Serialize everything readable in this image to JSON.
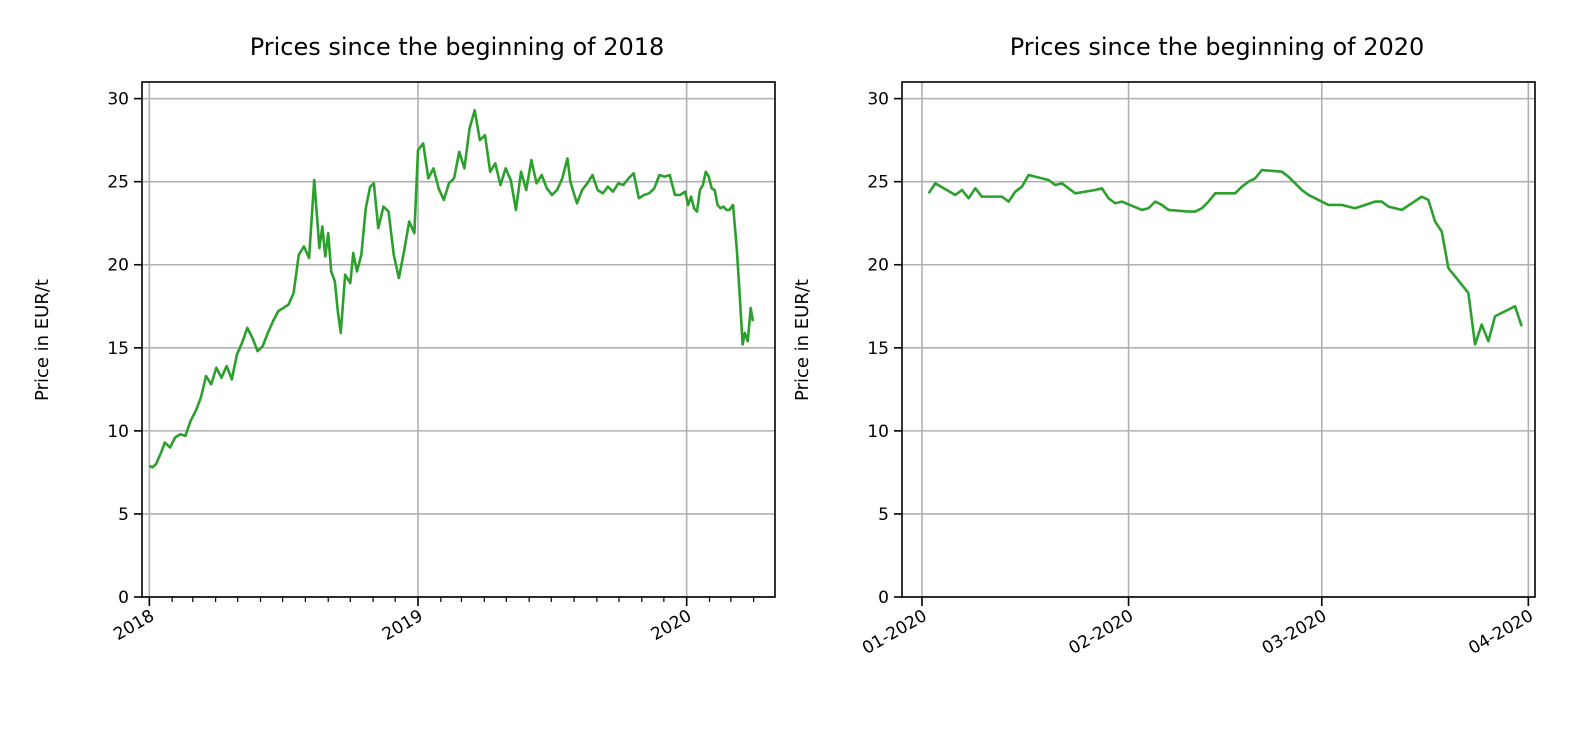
{
  "chart_data": [
    {
      "type": "line",
      "title": "Prices since the beginning of 2018",
      "xlabel": "",
      "ylabel": "Price in EUR/t",
      "x_axis": "date",
      "xlim": [
        "2017-12-22",
        "2020-04-30"
      ],
      "ylim": [
        0,
        31
      ],
      "yticks": [
        0,
        5,
        10,
        15,
        20,
        25,
        30
      ],
      "xticks": [
        {
          "date": "2018-01-01",
          "label": "2018"
        },
        {
          "date": "2019-01-01",
          "label": "2019"
        },
        {
          "date": "2020-01-01",
          "label": "2020"
        }
      ],
      "minor_ticks": "monthly",
      "grid": true,
      "line_color": "#2ca02c",
      "series": [
        {
          "x": [
            "2018-01-01",
            "2018-01-05",
            "2018-01-10",
            "2018-01-17",
            "2018-01-22",
            "2018-01-29",
            "2018-02-05",
            "2018-02-12",
            "2018-02-19",
            "2018-02-26",
            "2018-03-05",
            "2018-03-12",
            "2018-03-19",
            "2018-03-26",
            "2018-04-02",
            "2018-04-09",
            "2018-04-16",
            "2018-04-23",
            "2018-04-30",
            "2018-05-07",
            "2018-05-14",
            "2018-05-21",
            "2018-05-28",
            "2018-06-04",
            "2018-06-11",
            "2018-06-18",
            "2018-06-25",
            "2018-07-02",
            "2018-07-09",
            "2018-07-16",
            "2018-07-23",
            "2018-07-30",
            "2018-08-06",
            "2018-08-13",
            "2018-08-20",
            "2018-08-24",
            "2018-08-28",
            "2018-09-01",
            "2018-09-05",
            "2018-09-10",
            "2018-09-14",
            "2018-09-18",
            "2018-09-24",
            "2018-10-01",
            "2018-10-05",
            "2018-10-10",
            "2018-10-16",
            "2018-10-22",
            "2018-10-28",
            "2018-11-02",
            "2018-11-08",
            "2018-11-15",
            "2018-11-22",
            "2018-11-29",
            "2018-12-06",
            "2018-12-13",
            "2018-12-20",
            "2018-12-27",
            "2019-01-01",
            "2019-01-08",
            "2019-01-15",
            "2019-01-22",
            "2019-01-29",
            "2019-02-05",
            "2019-02-12",
            "2019-02-19",
            "2019-02-26",
            "2019-03-05",
            "2019-03-12",
            "2019-03-19",
            "2019-03-26",
            "2019-04-02",
            "2019-04-09",
            "2019-04-16",
            "2019-04-23",
            "2019-04-30",
            "2019-05-07",
            "2019-05-14",
            "2019-05-21",
            "2019-05-28",
            "2019-06-04",
            "2019-06-11",
            "2019-06-18",
            "2019-06-25",
            "2019-07-02",
            "2019-07-09",
            "2019-07-16",
            "2019-07-23",
            "2019-07-27",
            "2019-07-31",
            "2019-08-05",
            "2019-08-12",
            "2019-08-19",
            "2019-08-26",
            "2019-09-02",
            "2019-09-09",
            "2019-09-16",
            "2019-09-23",
            "2019-09-30",
            "2019-10-07",
            "2019-10-14",
            "2019-10-21",
            "2019-10-28",
            "2019-11-04",
            "2019-11-11",
            "2019-11-18",
            "2019-11-25",
            "2019-12-02",
            "2019-12-09",
            "2019-12-16",
            "2019-12-23",
            "2019-12-30",
            "2020-01-03",
            "2020-01-07",
            "2020-01-11",
            "2020-01-15",
            "2020-01-19",
            "2020-01-23",
            "2020-01-27",
            "2020-01-31",
            "2020-02-04",
            "2020-02-08",
            "2020-02-12",
            "2020-02-16",
            "2020-02-20",
            "2020-02-24",
            "2020-02-28",
            "2020-03-04",
            "2020-03-09",
            "2020-03-13",
            "2020-03-17",
            "2020-03-20",
            "2020-03-24",
            "2020-03-28",
            "2020-03-31"
          ],
          "y": [
            7.9,
            7.8,
            8.0,
            8.7,
            9.3,
            9.0,
            9.6,
            9.8,
            9.7,
            10.6,
            11.2,
            12.0,
            13.3,
            12.8,
            13.8,
            13.2,
            13.9,
            13.1,
            14.6,
            15.3,
            16.2,
            15.6,
            14.8,
            15.1,
            15.9,
            16.6,
            17.2,
            17.4,
            17.6,
            18.3,
            20.6,
            21.1,
            20.4,
            25.1,
            21.0,
            22.3,
            20.5,
            21.9,
            19.6,
            19.0,
            17.2,
            15.9,
            19.4,
            18.9,
            20.7,
            19.6,
            20.6,
            23.4,
            24.7,
            24.9,
            22.2,
            23.5,
            23.2,
            20.6,
            19.2,
            20.8,
            22.6,
            21.9,
            26.9,
            27.3,
            25.2,
            25.8,
            24.6,
            23.9,
            24.9,
            25.2,
            26.8,
            25.8,
            28.2,
            29.3,
            27.5,
            27.8,
            25.6,
            26.1,
            24.8,
            25.8,
            25.1,
            23.3,
            25.6,
            24.5,
            26.3,
            24.9,
            25.4,
            24.6,
            24.2,
            24.5,
            25.2,
            26.4,
            25.0,
            24.4,
            23.7,
            24.5,
            24.9,
            25.4,
            24.5,
            24.3,
            24.7,
            24.4,
            24.9,
            24.8,
            25.2,
            25.5,
            24.0,
            24.2,
            24.3,
            24.6,
            25.4,
            25.3,
            25.4,
            24.2,
            24.2,
            24.4,
            23.6,
            24.1,
            23.4,
            23.2,
            24.5,
            24.8,
            25.6,
            25.3,
            24.6,
            24.5,
            23.6,
            23.4,
            23.5,
            23.3,
            23.3,
            23.6,
            21.0,
            18.2,
            15.2,
            15.9,
            15.4,
            17.4,
            16.6
          ]
        }
      ]
    },
    {
      "type": "line",
      "title": "Prices since the beginning of 2020",
      "xlabel": "",
      "ylabel": "Price in EUR/t",
      "x_axis": "date",
      "xlim": [
        "2019-12-29",
        "2020-04-02"
      ],
      "ylim": [
        0,
        31
      ],
      "yticks": [
        0,
        5,
        10,
        15,
        20,
        25,
        30
      ],
      "xticks": [
        {
          "date": "2020-01-01",
          "label": "01-2020"
        },
        {
          "date": "2020-02-01",
          "label": "02-2020"
        },
        {
          "date": "2020-03-01",
          "label": "03-2020"
        },
        {
          "date": "2020-04-01",
          "label": "04-2020"
        }
      ],
      "grid": true,
      "line_color": "#2ca02c",
      "series": [
        {
          "x": [
            "2020-01-02",
            "2020-01-03",
            "2020-01-06",
            "2020-01-07",
            "2020-01-08",
            "2020-01-09",
            "2020-01-10",
            "2020-01-13",
            "2020-01-14",
            "2020-01-15",
            "2020-01-16",
            "2020-01-17",
            "2020-01-20",
            "2020-01-21",
            "2020-01-22",
            "2020-01-23",
            "2020-01-24",
            "2020-01-27",
            "2020-01-28",
            "2020-01-29",
            "2020-01-30",
            "2020-01-31",
            "2020-02-03",
            "2020-02-04",
            "2020-02-05",
            "2020-02-06",
            "2020-02-07",
            "2020-02-10",
            "2020-02-11",
            "2020-02-12",
            "2020-02-13",
            "2020-02-14",
            "2020-02-17",
            "2020-02-18",
            "2020-02-19",
            "2020-02-20",
            "2020-02-21",
            "2020-02-24",
            "2020-02-25",
            "2020-02-26",
            "2020-02-27",
            "2020-02-28",
            "2020-03-02",
            "2020-03-03",
            "2020-03-04",
            "2020-03-05",
            "2020-03-06",
            "2020-03-09",
            "2020-03-10",
            "2020-03-11",
            "2020-03-12",
            "2020-03-13",
            "2020-03-16",
            "2020-03-17",
            "2020-03-18",
            "2020-03-19",
            "2020-03-20",
            "2020-03-23",
            "2020-03-24",
            "2020-03-25",
            "2020-03-26",
            "2020-03-27",
            "2020-03-30",
            "2020-03-31"
          ],
          "y": [
            24.3,
            24.9,
            24.2,
            24.5,
            24.0,
            24.6,
            24.1,
            24.1,
            23.8,
            24.4,
            24.7,
            25.4,
            25.1,
            24.8,
            24.9,
            24.6,
            24.3,
            24.5,
            24.6,
            24.0,
            23.7,
            23.8,
            23.3,
            23.4,
            23.8,
            23.6,
            23.3,
            23.2,
            23.2,
            23.4,
            23.8,
            24.3,
            24.3,
            24.7,
            25.0,
            25.2,
            25.7,
            25.6,
            25.3,
            24.9,
            24.5,
            24.2,
            23.6,
            23.6,
            23.6,
            23.5,
            23.4,
            23.8,
            23.8,
            23.5,
            23.4,
            23.3,
            24.1,
            23.9,
            22.6,
            22.0,
            19.8,
            18.3,
            15.2,
            16.4,
            15.4,
            16.9,
            17.5,
            16.3
          ]
        }
      ]
    }
  ]
}
